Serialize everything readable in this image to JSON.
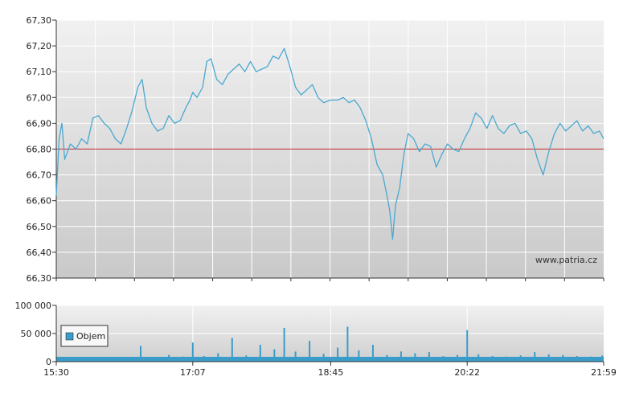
{
  "watermark": "www.patria.cz",
  "colors": {
    "price_line": "#4aa8d0",
    "reference_line": "#c0282d",
    "volume_bar": "#3a9cc8",
    "grid": "#ffffff",
    "plot_top": "#f1f1f1",
    "plot_bottom": "#c9c9c9",
    "axis": "#333333"
  },
  "chart_data": [
    {
      "type": "line",
      "title": "",
      "xlabel": "",
      "ylabel": "",
      "x_tick_labels": [
        "15:30",
        "17:07",
        "18:45",
        "20:22",
        "21:59"
      ],
      "y_tick_labels": [
        "66,30",
        "66,40",
        "66,50",
        "66,60",
        "66,70",
        "66,80",
        "66,90",
        "67,00",
        "67,10",
        "67,20",
        "67,30"
      ],
      "ylim": [
        66.3,
        67.3
      ],
      "grid": true,
      "reference_level": 66.8,
      "watermark": "www.patria.cz",
      "series": [
        {
          "points": [
            [
              "15:30",
              66.62
            ],
            [
              "15:32",
              66.84
            ],
            [
              "15:34",
              66.9
            ],
            [
              "15:36",
              66.76
            ],
            [
              "15:40",
              66.82
            ],
            [
              "15:44",
              66.8
            ],
            [
              "15:48",
              66.84
            ],
            [
              "15:52",
              66.82
            ],
            [
              "15:56",
              66.92
            ],
            [
              "16:00",
              66.93
            ],
            [
              "16:04",
              66.9
            ],
            [
              "16:08",
              66.88
            ],
            [
              "16:12",
              66.84
            ],
            [
              "16:16",
              66.82
            ],
            [
              "16:20",
              66.88
            ],
            [
              "16:24",
              66.95
            ],
            [
              "16:28",
              67.04
            ],
            [
              "16:31",
              67.07
            ],
            [
              "16:34",
              66.96
            ],
            [
              "16:38",
              66.9
            ],
            [
              "16:42",
              66.87
            ],
            [
              "16:46",
              66.88
            ],
            [
              "16:50",
              66.93
            ],
            [
              "16:54",
              66.9
            ],
            [
              "16:58",
              66.91
            ],
            [
              "17:02",
              66.96
            ],
            [
              "17:05",
              66.99
            ],
            [
              "17:07",
              67.02
            ],
            [
              "17:10",
              67.0
            ],
            [
              "17:14",
              67.04
            ],
            [
              "17:17",
              67.14
            ],
            [
              "17:20",
              67.15
            ],
            [
              "17:24",
              67.07
            ],
            [
              "17:28",
              67.05
            ],
            [
              "17:32",
              67.09
            ],
            [
              "17:36",
              67.11
            ],
            [
              "17:40",
              67.13
            ],
            [
              "17:44",
              67.1
            ],
            [
              "17:48",
              67.14
            ],
            [
              "17:52",
              67.1
            ],
            [
              "17:56",
              67.11
            ],
            [
              "18:00",
              67.12
            ],
            [
              "18:04",
              67.16
            ],
            [
              "18:08",
              67.15
            ],
            [
              "18:12",
              67.19
            ],
            [
              "18:16",
              67.12
            ],
            [
              "18:20",
              67.04
            ],
            [
              "18:24",
              67.01
            ],
            [
              "18:28",
              67.03
            ],
            [
              "18:32",
              67.05
            ],
            [
              "18:36",
              67.0
            ],
            [
              "18:40",
              66.98
            ],
            [
              "18:45",
              66.99
            ],
            [
              "18:50",
              66.99
            ],
            [
              "18:54",
              67.0
            ],
            [
              "18:58",
              66.98
            ],
            [
              "19:02",
              66.99
            ],
            [
              "19:06",
              66.96
            ],
            [
              "19:10",
              66.91
            ],
            [
              "19:14",
              66.84
            ],
            [
              "19:18",
              66.74
            ],
            [
              "19:22",
              66.7
            ],
            [
              "19:25",
              66.62
            ],
            [
              "19:27",
              66.56
            ],
            [
              "19:29",
              66.45
            ],
            [
              "19:31",
              66.58
            ],
            [
              "19:34",
              66.65
            ],
            [
              "19:37",
              66.78
            ],
            [
              "19:40",
              66.86
            ],
            [
              "19:44",
              66.84
            ],
            [
              "19:48",
              66.79
            ],
            [
              "19:52",
              66.82
            ],
            [
              "19:56",
              66.81
            ],
            [
              "20:00",
              66.73
            ],
            [
              "20:04",
              66.78
            ],
            [
              "20:08",
              66.82
            ],
            [
              "20:12",
              66.8
            ],
            [
              "20:16",
              66.79
            ],
            [
              "20:20",
              66.84
            ],
            [
              "20:24",
              66.88
            ],
            [
              "20:28",
              66.94
            ],
            [
              "20:32",
              66.92
            ],
            [
              "20:36",
              66.88
            ],
            [
              "20:40",
              66.93
            ],
            [
              "20:44",
              66.88
            ],
            [
              "20:48",
              66.86
            ],
            [
              "20:52",
              66.89
            ],
            [
              "20:56",
              66.9
            ],
            [
              "21:00",
              66.86
            ],
            [
              "21:04",
              66.87
            ],
            [
              "21:08",
              66.84
            ],
            [
              "21:12",
              66.76
            ],
            [
              "21:16",
              66.7
            ],
            [
              "21:20",
              66.79
            ],
            [
              "21:24",
              66.86
            ],
            [
              "21:28",
              66.9
            ],
            [
              "21:32",
              66.87
            ],
            [
              "21:36",
              66.89
            ],
            [
              "21:40",
              66.91
            ],
            [
              "21:44",
              66.87
            ],
            [
              "21:48",
              66.89
            ],
            [
              "21:52",
              66.86
            ],
            [
              "21:56",
              66.87
            ],
            [
              "21:59",
              66.84
            ]
          ]
        }
      ]
    },
    {
      "type": "bar",
      "title": "",
      "xlabel": "",
      "ylabel": "",
      "x_tick_labels": [
        "15:30",
        "17:07",
        "18:45",
        "20:22",
        "21:59"
      ],
      "y_tick_labels": [
        "0",
        "50 000",
        "100 000"
      ],
      "ylim": [
        0,
        100000
      ],
      "grid": true,
      "legend": {
        "placement": "left",
        "entries": [
          "Objem"
        ]
      },
      "series": [
        {
          "name": "Objem",
          "points": [
            [
              "15:35",
              2000
            ],
            [
              "15:45",
              3000
            ],
            [
              "15:55",
              2000
            ],
            [
              "16:05",
              3000
            ],
            [
              "16:15",
              2000
            ],
            [
              "16:27",
              5000
            ],
            [
              "16:30",
              28000
            ],
            [
              "16:40",
              8000
            ],
            [
              "16:50",
              12000
            ],
            [
              "17:00",
              9000
            ],
            [
              "17:07",
              34000
            ],
            [
              "17:15",
              10000
            ],
            [
              "17:25",
              15000
            ],
            [
              "17:35",
              42000
            ],
            [
              "17:45",
              11000
            ],
            [
              "17:55",
              30000
            ],
            [
              "18:05",
              22000
            ],
            [
              "18:12",
              60000
            ],
            [
              "18:20",
              18000
            ],
            [
              "18:30",
              37000
            ],
            [
              "18:40",
              14000
            ],
            [
              "18:50",
              25000
            ],
            [
              "18:57",
              62000
            ],
            [
              "19:05",
              20000
            ],
            [
              "19:15",
              30000
            ],
            [
              "19:25",
              12000
            ],
            [
              "19:35",
              18000
            ],
            [
              "19:45",
              15000
            ],
            [
              "19:55",
              17000
            ],
            [
              "20:05",
              10000
            ],
            [
              "20:15",
              12000
            ],
            [
              "20:22",
              56000
            ],
            [
              "20:30",
              13000
            ],
            [
              "20:40",
              10000
            ],
            [
              "20:50",
              9000
            ],
            [
              "21:00",
              11000
            ],
            [
              "21:10",
              17000
            ],
            [
              "21:20",
              13000
            ],
            [
              "21:30",
              12000
            ],
            [
              "21:40",
              10000
            ],
            [
              "21:50",
              9000
            ],
            [
              "21:58",
              11000
            ]
          ]
        }
      ]
    }
  ]
}
